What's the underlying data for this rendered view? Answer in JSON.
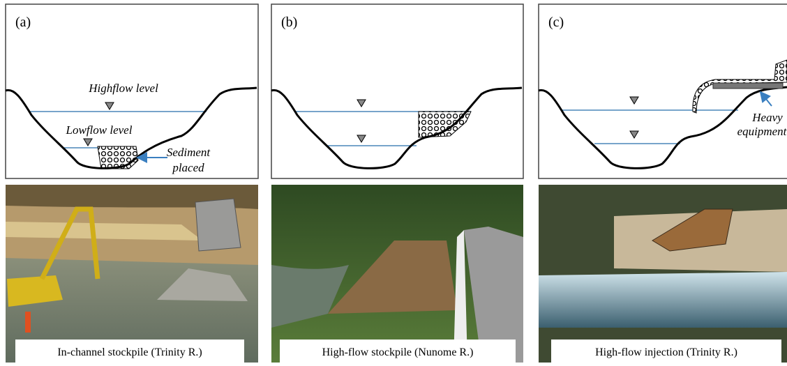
{
  "panels": [
    {
      "label": "(a)",
      "highflow": "Highflow level",
      "lowflow": "Lowflow level",
      "note_line1": "Sediment",
      "note_line2": "placed",
      "caption": "In-channel stockpile (Trinity R.)"
    },
    {
      "label": "(b)",
      "caption": "High-flow stockpile (Nunome R.)"
    },
    {
      "label": "(c)",
      "note_line1": "Heavy",
      "note_line2": "equipment",
      "caption": "High-flow injection (Trinity R.)"
    }
  ]
}
